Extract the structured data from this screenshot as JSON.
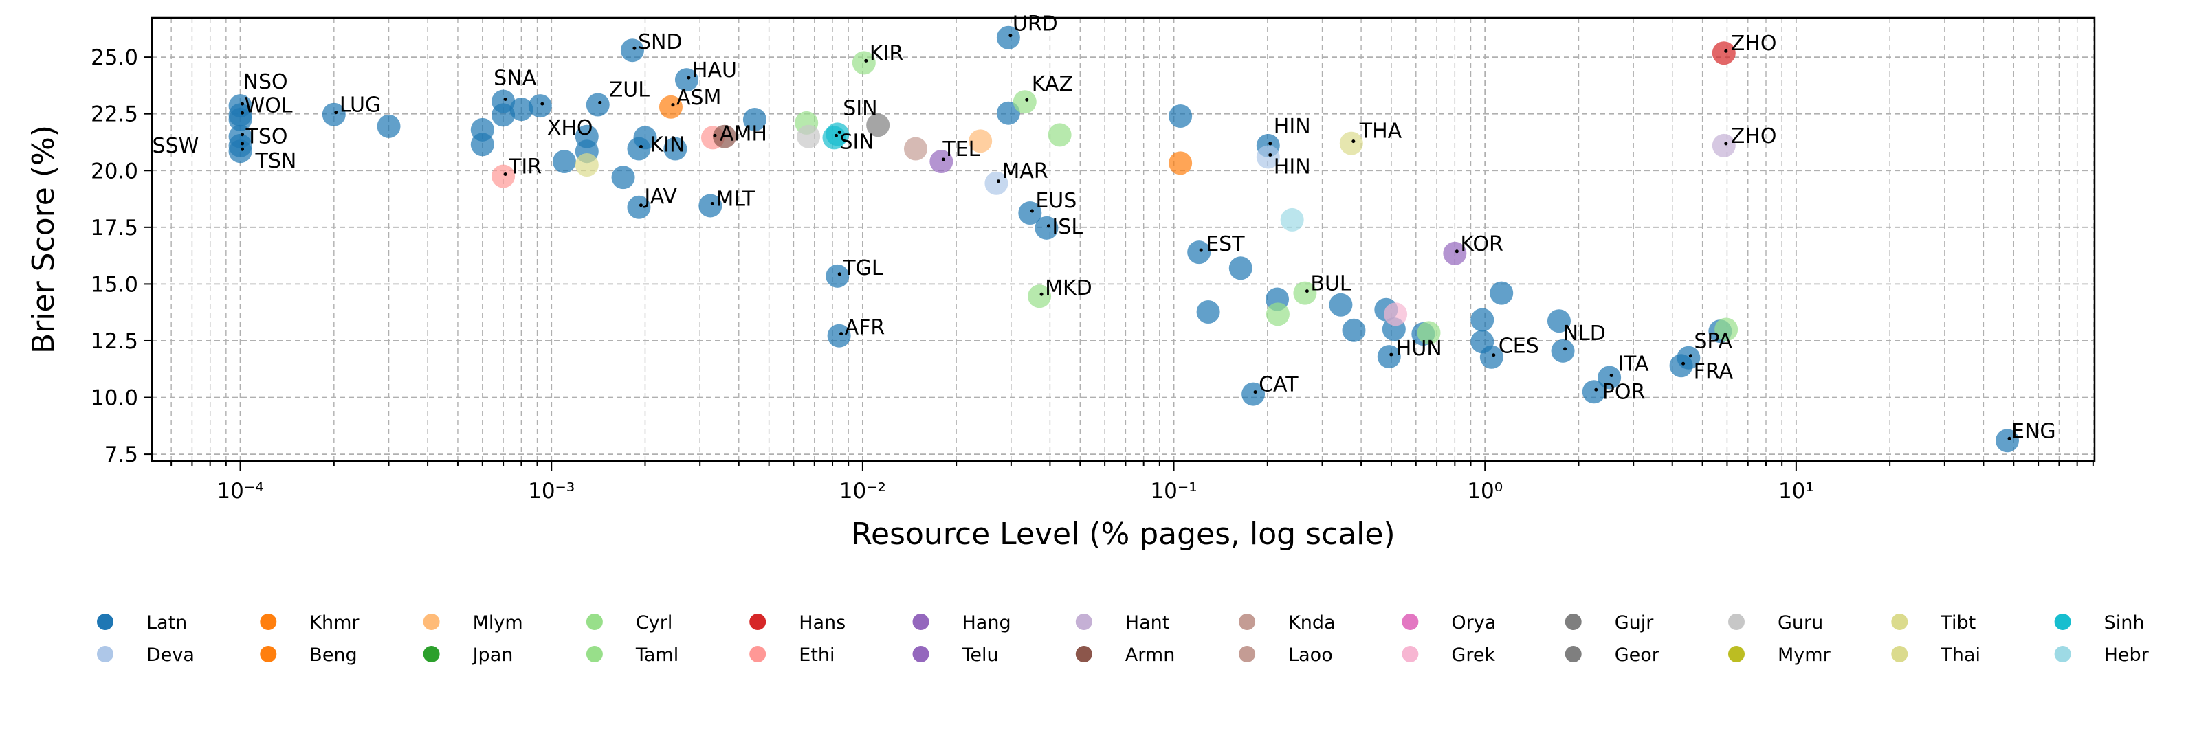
{
  "chart_data": {
    "type": "scatter",
    "title": "",
    "xlabel": "Resource Level (% pages, log scale)",
    "ylabel": "Brier Score (%)",
    "x_scale": "log",
    "xlim": [
      5.2e-05,
      91
    ],
    "ylim": [
      7.2,
      26.73
    ],
    "x_ticks": [
      0.0001,
      0.001,
      0.01,
      0.1,
      1,
      10
    ],
    "x_tick_labels": [
      "10⁻⁴",
      "10⁻³",
      "10⁻²",
      "10⁻¹",
      "10⁰",
      "10¹"
    ],
    "y_ticks": [
      7.5,
      10.0,
      12.5,
      15.0,
      17.5,
      20.0,
      22.5,
      25.0
    ],
    "y_tick_labels": [
      "7.5",
      "10.0",
      "12.5",
      "15.0",
      "17.5",
      "20.0",
      "22.5",
      "25.0"
    ],
    "grid": {
      "major": true,
      "minor_x": true,
      "style": "dashed"
    },
    "legend_placement": "bottom",
    "legend": [
      {
        "name": "Latn",
        "color": "#1f77b4"
      },
      {
        "name": "Deva",
        "color": "#aec7e8"
      },
      {
        "name": "Khmr",
        "color": "#ff7f0e"
      },
      {
        "name": "Beng",
        "color": "#ff7f0e"
      },
      {
        "name": "Mlym",
        "color": "#ffbb78"
      },
      {
        "name": "Jpan",
        "color": "#2ca02c"
      },
      {
        "name": "Cyrl",
        "color": "#98df8a"
      },
      {
        "name": "Taml",
        "color": "#98df8a"
      },
      {
        "name": "Hans",
        "color": "#d62728"
      },
      {
        "name": "Ethi",
        "color": "#ff9896"
      },
      {
        "name": "Hang",
        "color": "#9467bd"
      },
      {
        "name": "Telu",
        "color": "#9467bd"
      },
      {
        "name": "Hant",
        "color": "#c5b0d5"
      },
      {
        "name": "Armn",
        "color": "#8c564b"
      },
      {
        "name": "Knda",
        "color": "#c49c94"
      },
      {
        "name": "Laoo",
        "color": "#c49c94"
      },
      {
        "name": "Orya",
        "color": "#e377c2"
      },
      {
        "name": "Grek",
        "color": "#f7b6d2"
      },
      {
        "name": "Gujr",
        "color": "#7f7f7f"
      },
      {
        "name": "Geor",
        "color": "#7f7f7f"
      },
      {
        "name": "Guru",
        "color": "#c7c7c7"
      },
      {
        "name": "Mymr",
        "color": "#bcbd22"
      },
      {
        "name": "Tibt",
        "color": "#dbdb8d"
      },
      {
        "name": "Thai",
        "color": "#dbdb8d"
      },
      {
        "name": "Sinh",
        "color": "#17becf"
      },
      {
        "name": "Hebr",
        "color": "#9edae5"
      }
    ],
    "points": [
      {
        "x": 0.0001,
        "y": 22.85,
        "script": "Latn",
        "label": "NSO"
      },
      {
        "x": 0.0001,
        "y": 22.45,
        "script": "Latn",
        "label": "WOL"
      },
      {
        "x": 0.0001,
        "y": 22.25,
        "script": "Latn",
        "label": ""
      },
      {
        "x": 0.0001,
        "y": 21.5,
        "script": "Latn",
        "label": "TSO"
      },
      {
        "x": 0.0001,
        "y": 21.1,
        "script": "Latn",
        "label": "SSW"
      },
      {
        "x": 0.0001,
        "y": 20.85,
        "script": "Latn",
        "label": "TSN"
      },
      {
        "x": 0.0002,
        "y": 22.47,
        "script": "Latn",
        "label": "LUG"
      },
      {
        "x": 0.0003,
        "y": 21.95,
        "script": "Latn",
        "label": ""
      },
      {
        "x": 0.0006,
        "y": 21.8,
        "script": "Latn",
        "label": ""
      },
      {
        "x": 0.0006,
        "y": 21.15,
        "script": "Latn",
        "label": ""
      },
      {
        "x": 0.0007,
        "y": 23.05,
        "script": "Latn",
        "label": "SNA"
      },
      {
        "x": 0.0007,
        "y": 22.45,
        "script": "Latn",
        "label": ""
      },
      {
        "x": 0.0008,
        "y": 22.7,
        "script": "Latn",
        "label": ""
      },
      {
        "x": 0.00092,
        "y": 22.85,
        "script": "Latn",
        "label": "XHO"
      },
      {
        "x": 0.00141,
        "y": 22.9,
        "script": "Latn",
        "label": "ZUL"
      },
      {
        "x": 0.0011,
        "y": 20.4,
        "script": "Latn",
        "label": ""
      },
      {
        "x": 0.0013,
        "y": 21.5,
        "script": "Latn",
        "label": ""
      },
      {
        "x": 0.0013,
        "y": 20.85,
        "script": "Latn",
        "label": ""
      },
      {
        "x": 0.0017,
        "y": 19.7,
        "script": "Latn",
        "label": ""
      },
      {
        "x": 0.00191,
        "y": 18.38,
        "script": "Latn",
        "label": "JAV"
      },
      {
        "x": 0.00191,
        "y": 20.96,
        "script": "Latn",
        "label": "KIN"
      },
      {
        "x": 0.002,
        "y": 21.45,
        "script": "Latn",
        "label": ""
      },
      {
        "x": 0.0025,
        "y": 20.96,
        "script": "Latn",
        "label": ""
      },
      {
        "x": 0.00182,
        "y": 25.3,
        "script": "Latn",
        "label": "SND"
      },
      {
        "x": 0.00272,
        "y": 24.0,
        "script": "Latn",
        "label": "HAU"
      },
      {
        "x": 0.0045,
        "y": 22.25,
        "script": "Latn",
        "label": ""
      },
      {
        "x": 0.00324,
        "y": 18.45,
        "script": "Latn",
        "label": "MLT"
      },
      {
        "x": 0.0294,
        "y": 25.86,
        "script": "Latn",
        "label": "URD"
      },
      {
        "x": 0.0294,
        "y": 22.53,
        "script": "Latn",
        "label": ""
      },
      {
        "x": 0.0345,
        "y": 18.13,
        "script": "Latn",
        "label": "EUS"
      },
      {
        "x": 0.039,
        "y": 17.47,
        "script": "Latn",
        "label": "ISL"
      },
      {
        "x": 0.105,
        "y": 22.4,
        "script": "Latn",
        "label": ""
      },
      {
        "x": 0.201,
        "y": 21.1,
        "script": "Latn",
        "label": "HIN"
      },
      {
        "x": 0.0083,
        "y": 15.35,
        "script": "Latn",
        "label": "TGL"
      },
      {
        "x": 0.0084,
        "y": 12.72,
        "script": "Latn",
        "label": "AFR"
      },
      {
        "x": 0.1205,
        "y": 16.4,
        "script": "Latn",
        "label": "EST"
      },
      {
        "x": 0.164,
        "y": 15.7,
        "script": "Latn",
        "label": ""
      },
      {
        "x": 0.129,
        "y": 13.77,
        "script": "Latn",
        "label": ""
      },
      {
        "x": 0.215,
        "y": 14.33,
        "script": "Latn",
        "label": ""
      },
      {
        "x": 0.344,
        "y": 14.08,
        "script": "Latn",
        "label": ""
      },
      {
        "x": 0.379,
        "y": 12.96,
        "script": "Latn",
        "label": ""
      },
      {
        "x": 0.481,
        "y": 13.87,
        "script": "Latn",
        "label": ""
      },
      {
        "x": 0.51,
        "y": 13.01,
        "script": "Latn",
        "label": ""
      },
      {
        "x": 0.492,
        "y": 11.8,
        "script": "Latn",
        "label": "HUN"
      },
      {
        "x": 0.633,
        "y": 12.8,
        "script": "Latn",
        "label": ""
      },
      {
        "x": 1.13,
        "y": 14.6,
        "script": "Latn",
        "label": ""
      },
      {
        "x": 0.98,
        "y": 13.42,
        "script": "Latn",
        "label": ""
      },
      {
        "x": 0.98,
        "y": 12.46,
        "script": "Latn",
        "label": ""
      },
      {
        "x": 1.05,
        "y": 11.78,
        "script": "Latn",
        "label": "CES"
      },
      {
        "x": 1.73,
        "y": 13.37,
        "script": "Latn",
        "label": ""
      },
      {
        "x": 1.78,
        "y": 12.05,
        "script": "Latn",
        "label": "NLD"
      },
      {
        "x": 2.51,
        "y": 10.88,
        "script": "Latn",
        "label": "ITA"
      },
      {
        "x": 2.24,
        "y": 10.25,
        "script": "Latn",
        "label": "POR"
      },
      {
        "x": 0.18,
        "y": 10.15,
        "script": "Latn",
        "label": "CAT"
      },
      {
        "x": 5.7,
        "y": 12.92,
        "script": "Latn",
        "label": ""
      },
      {
        "x": 4.51,
        "y": 11.75,
        "script": "Latn",
        "label": "SPA"
      },
      {
        "x": 4.27,
        "y": 11.4,
        "script": "Latn",
        "label": "FRA"
      },
      {
        "x": 47.7,
        "y": 8.1,
        "script": "Latn",
        "label": "ENG"
      },
      {
        "x": 0.0269,
        "y": 19.44,
        "script": "Deva",
        "label": "MAR"
      },
      {
        "x": 0.201,
        "y": 20.6,
        "script": "Deva",
        "label": "HIN"
      },
      {
        "x": 0.00242,
        "y": 22.8,
        "script": "Beng",
        "label": "ASM"
      },
      {
        "x": 0.105,
        "y": 20.33,
        "script": "Beng",
        "label": ""
      },
      {
        "x": 0.0239,
        "y": 21.3,
        "script": "Mlym",
        "label": ""
      },
      {
        "x": 0.0101,
        "y": 24.75,
        "script": "Cyrl",
        "label": "KIR"
      },
      {
        "x": 0.0332,
        "y": 23.03,
        "script": "Cyrl",
        "label": "KAZ"
      },
      {
        "x": 0.0066,
        "y": 22.1,
        "script": "Cyrl",
        "label": ""
      },
      {
        "x": 0.043,
        "y": 21.57,
        "script": "Taml",
        "label": ""
      },
      {
        "x": 0.037,
        "y": 14.46,
        "script": "Cyrl",
        "label": "MKD"
      },
      {
        "x": 0.264,
        "y": 14.6,
        "script": "Cyrl",
        "label": "BUL"
      },
      {
        "x": 0.216,
        "y": 13.67,
        "script": "Cyrl",
        "label": ""
      },
      {
        "x": 0.66,
        "y": 12.85,
        "script": "Cyrl",
        "label": ""
      },
      {
        "x": 5.96,
        "y": 13.0,
        "script": "Cyrl",
        "label": ""
      },
      {
        "x": 5.86,
        "y": 25.18,
        "script": "Hans",
        "label": "ZHO"
      },
      {
        "x": 0.0007,
        "y": 19.75,
        "script": "Ethi",
        "label": "TIR"
      },
      {
        "x": 0.0033,
        "y": 21.45,
        "script": "Ethi",
        "label": "AMH"
      },
      {
        "x": 0.8,
        "y": 16.35,
        "script": "Hang",
        "label": "KOR"
      },
      {
        "x": 0.0179,
        "y": 20.4,
        "script": "Telu",
        "label": "TEL"
      },
      {
        "x": 5.86,
        "y": 21.1,
        "script": "Hant",
        "label": "ZHO"
      },
      {
        "x": 0.0036,
        "y": 21.5,
        "script": "Armn",
        "label": ""
      },
      {
        "x": 0.0148,
        "y": 20.96,
        "script": "Knda",
        "label": ""
      },
      {
        "x": 0.516,
        "y": 13.67,
        "script": "Grek",
        "label": ""
      },
      {
        "x": 0.0112,
        "y": 22.0,
        "script": "Gujr",
        "label": ""
      },
      {
        "x": 0.0067,
        "y": 21.5,
        "script": "Guru",
        "label": ""
      },
      {
        "x": 0.0013,
        "y": 20.25,
        "script": "Tibt",
        "label": ""
      },
      {
        "x": 0.372,
        "y": 21.2,
        "script": "Thai",
        "label": "THA"
      },
      {
        "x": 0.0083,
        "y": 21.6,
        "script": "Sinh",
        "label": "SIN"
      },
      {
        "x": 0.0081,
        "y": 21.45,
        "script": "Sinh",
        "label": "SIN"
      },
      {
        "x": 0.24,
        "y": 17.83,
        "script": "Hebr",
        "label": ""
      }
    ]
  }
}
